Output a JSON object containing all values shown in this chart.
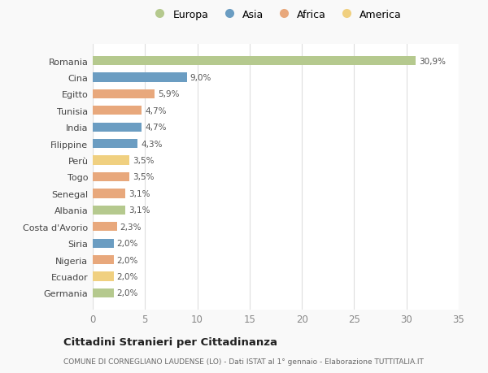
{
  "categories": [
    "Romania",
    "Cina",
    "Egitto",
    "Tunisia",
    "India",
    "Filippine",
    "Perù",
    "Togo",
    "Senegal",
    "Albania",
    "Costa d'Avorio",
    "Siria",
    "Nigeria",
    "Ecuador",
    "Germania"
  ],
  "values": [
    30.9,
    9.0,
    5.9,
    4.7,
    4.7,
    4.3,
    3.5,
    3.5,
    3.1,
    3.1,
    2.3,
    2.0,
    2.0,
    2.0,
    2.0
  ],
  "labels": [
    "30,9%",
    "9,0%",
    "5,9%",
    "4,7%",
    "4,7%",
    "4,3%",
    "3,5%",
    "3,5%",
    "3,1%",
    "3,1%",
    "2,3%",
    "2,0%",
    "2,0%",
    "2,0%",
    "2,0%"
  ],
  "bar_colors": [
    "#b5c98e",
    "#6b9dc2",
    "#e8a87c",
    "#e8a87c",
    "#6b9dc2",
    "#6b9dc2",
    "#f0d080",
    "#e8a87c",
    "#e8a87c",
    "#b5c98e",
    "#e8a87c",
    "#6b9dc2",
    "#e8a87c",
    "#f0d080",
    "#b5c98e"
  ],
  "legend_labels": [
    "Europa",
    "Asia",
    "Africa",
    "America"
  ],
  "legend_colors": [
    "#b5c98e",
    "#6b9dc2",
    "#e8a87c",
    "#f0d080"
  ],
  "xlim": [
    0,
    35
  ],
  "xticks": [
    0,
    5,
    10,
    15,
    20,
    25,
    30,
    35
  ],
  "title1": "Cittadini Stranieri per Cittadinanza",
  "title2": "COMUNE DI CORNEGLIANO LAUDENSE (LO) - Dati ISTAT al 1° gennaio - Elaborazione TUTTITALIA.IT",
  "background_color": "#f9f9f9",
  "plot_bg_color": "#ffffff",
  "bar_height": 0.55,
  "label_fontsize": 7.5,
  "ytick_fontsize": 8.0,
  "xtick_fontsize": 8.5,
  "legend_fontsize": 9.0
}
